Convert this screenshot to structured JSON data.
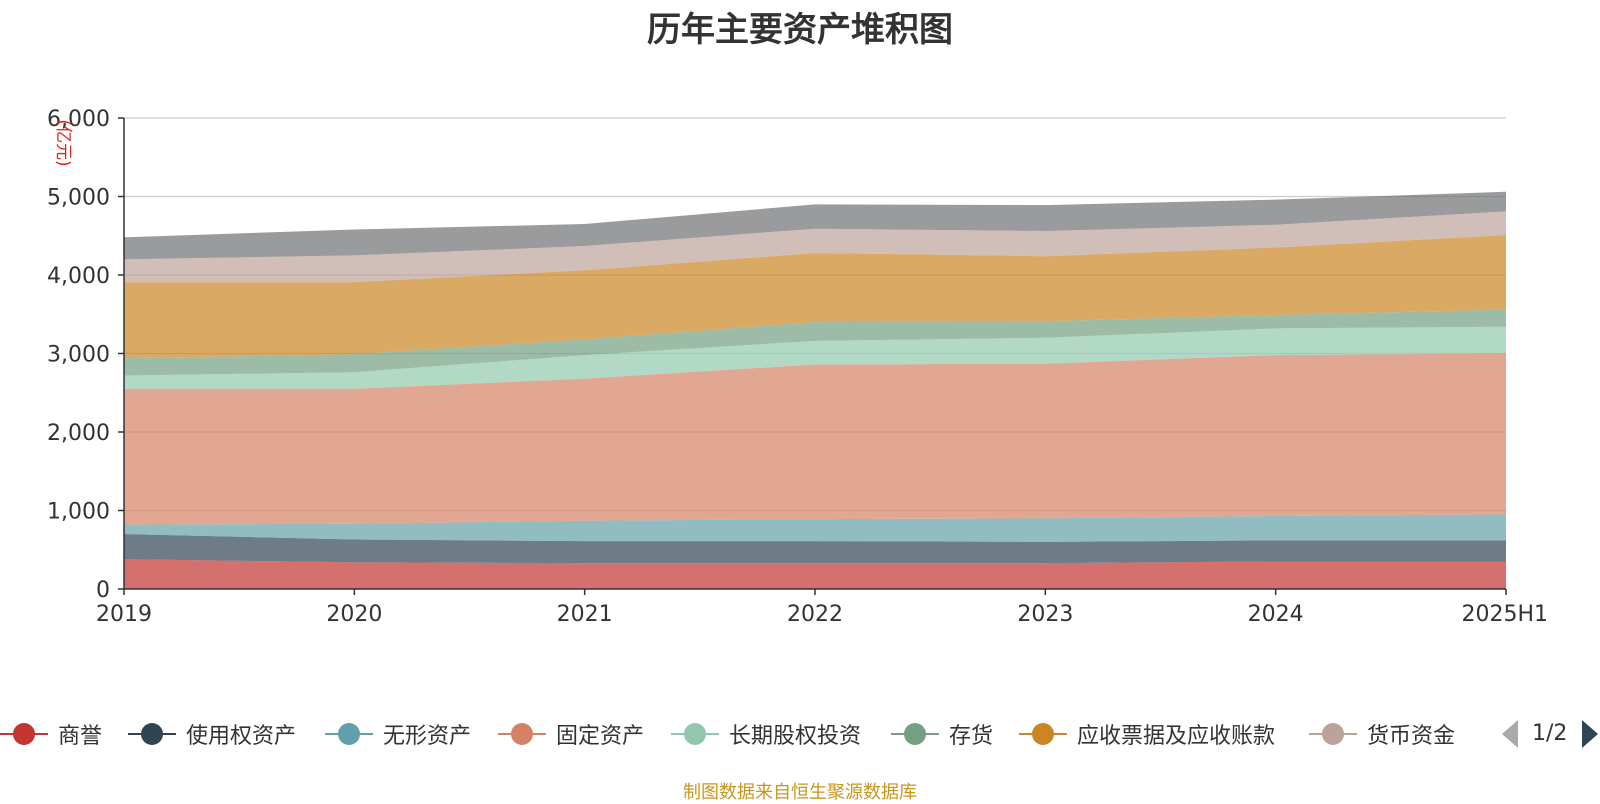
{
  "chart_data": {
    "type": "area",
    "stacked": true,
    "title": "历年主要资产堆积图",
    "y_unit": "(亿元)",
    "x": [
      "2019",
      "2020",
      "2021",
      "2022",
      "2023",
      "2024",
      "2025H1"
    ],
    "ylim": [
      0,
      6000
    ],
    "yticks": [
      0,
      1000,
      2000,
      3000,
      4000,
      5000,
      6000
    ],
    "ytick_labels": [
      "0",
      "1,000",
      "2,000",
      "3,000",
      "4,000",
      "5,000",
      "6,000"
    ],
    "grid": true,
    "legend_position": "bottom",
    "series": [
      {
        "name": "商誉",
        "color": "#c23531",
        "values": [
          380,
          340,
          330,
          330,
          330,
          350,
          350
        ]
      },
      {
        "name": "使用权资产",
        "color": "#2f4554",
        "values": [
          320,
          290,
          280,
          280,
          270,
          270,
          270
        ]
      },
      {
        "name": "无形资产",
        "color": "#61a0a8",
        "values": [
          120,
          200,
          260,
          280,
          300,
          310,
          330
        ]
      },
      {
        "name": "固定资产",
        "color": "#d48265",
        "values": [
          1730,
          1720,
          1810,
          1970,
          1970,
          2050,
          2050
        ]
      },
      {
        "name": "长期股权投资",
        "color": "#91c7ae",
        "values": [
          170,
          210,
          300,
          300,
          330,
          340,
          340
        ]
      },
      {
        "name": "存货",
        "color": "#749f83",
        "values": [
          220,
          230,
          200,
          240,
          210,
          170,
          220
        ]
      },
      {
        "name": "应收票据及应收账款",
        "color": "#ca8622",
        "values": [
          970,
          920,
          880,
          880,
          830,
          860,
          950
        ]
      },
      {
        "name": "货币资金",
        "color": "#bda29a",
        "values": [
          290,
          340,
          310,
          310,
          320,
          290,
          300
        ]
      },
      {
        "name": "",
        "color": "#6e7074",
        "values": [
          280,
          330,
          280,
          310,
          330,
          320,
          250
        ]
      }
    ]
  },
  "legend": {
    "items": [
      {
        "label": "商誉",
        "color": "#c23531"
      },
      {
        "label": "使用权资产",
        "color": "#2f4554"
      },
      {
        "label": "无形资产",
        "color": "#61a0a8"
      },
      {
        "label": "固定资产",
        "color": "#d48265"
      },
      {
        "label": "长期股权投资",
        "color": "#91c7ae"
      },
      {
        "label": "存货",
        "color": "#749f83"
      },
      {
        "label": "应收票据及应收账款",
        "color": "#ca8622"
      },
      {
        "label": "货币资金",
        "color": "#bda29a"
      }
    ],
    "page_indicator": "1/2"
  },
  "footer": {
    "source": "制图数据来自恒生聚源数据库"
  }
}
